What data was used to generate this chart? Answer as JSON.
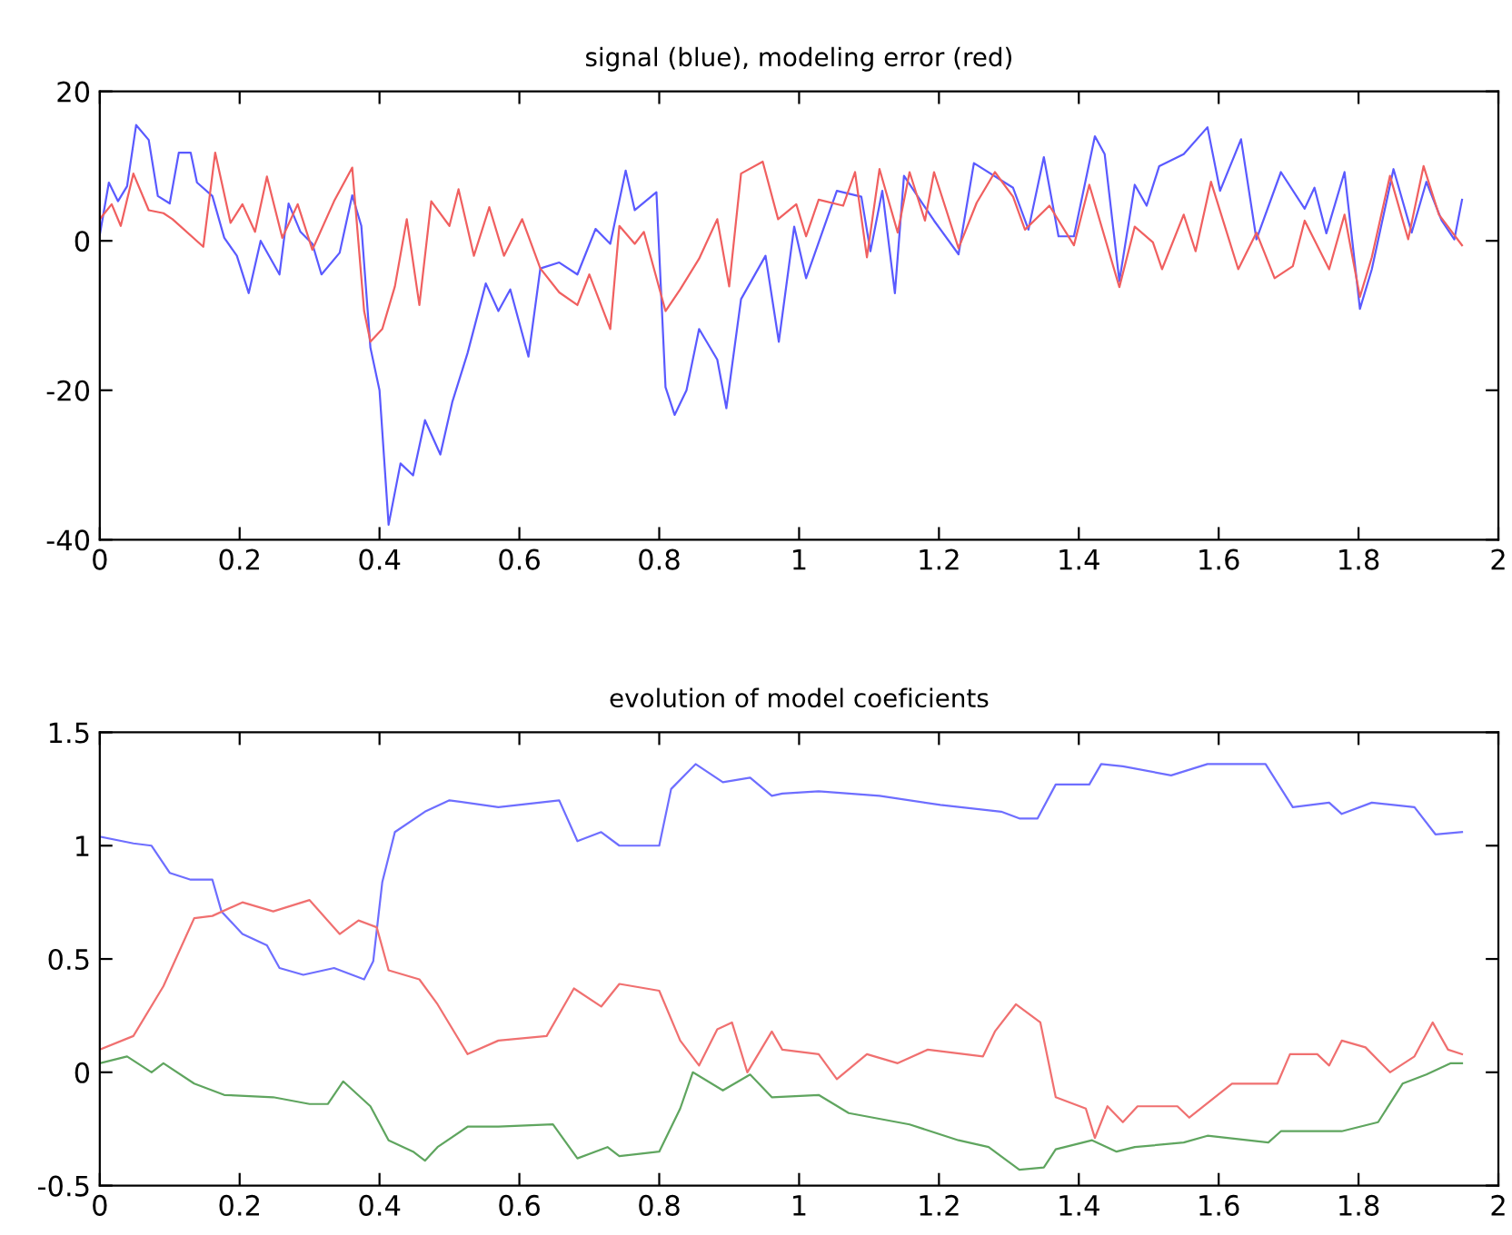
{
  "chart_data": [
    {
      "type": "line",
      "title": "signal (blue), modeling error (red)",
      "xlim": [
        0,
        2
      ],
      "ylim": [
        -40,
        20
      ],
      "xticks": [
        0,
        0.2,
        0.4,
        0.6,
        0.8,
        1,
        1.2,
        1.4,
        1.6,
        1.8,
        2
      ],
      "yticks": [
        -40,
        -20,
        0,
        20
      ],
      "series": [
        {
          "color": "#5a5aff",
          "x": [
            0,
            0.013,
            0.026,
            0.039,
            0.052,
            0.07,
            0.083,
            0.1,
            0.113,
            0.13,
            0.139,
            0.161,
            0.178,
            0.196,
            0.213,
            0.23,
            0.257,
            0.27,
            0.287,
            0.304,
            0.317,
            0.343,
            0.361,
            0.374,
            0.387,
            0.4,
            0.413,
            0.43,
            0.448,
            0.465,
            0.487,
            0.504,
            0.526,
            0.552,
            0.57,
            0.587,
            0.613,
            0.63,
            0.657,
            0.683,
            0.709,
            0.73,
            0.752,
            0.765,
            0.796,
            0.809,
            0.822,
            0.839,
            0.857,
            0.883,
            0.896,
            0.917,
            0.952,
            0.971,
            0.993,
            1.01,
            1.054,
            1.089,
            1.102,
            1.119,
            1.137,
            1.15,
            1.193,
            1.228,
            1.25,
            1.306,
            1.328,
            1.35,
            1.371,
            1.393,
            1.423,
            1.437,
            1.458,
            1.48,
            1.497,
            1.515,
            1.55,
            1.584,
            1.602,
            1.632,
            1.654,
            1.689,
            1.723,
            1.737,
            1.754,
            1.78,
            1.802,
            1.819,
            1.85,
            1.876,
            1.897,
            1.919,
            1.937,
            1.948
          ],
          "values": [
            0.8,
            7.8,
            5.3,
            7.3,
            15.5,
            13.5,
            6,
            5,
            11.8,
            11.8,
            7.8,
            6,
            0.4,
            -2,
            -7,
            0,
            -4.5,
            5,
            1.2,
            -0.4,
            -4.5,
            -1.6,
            6.1,
            2,
            -14.3,
            -20,
            -38,
            -29.8,
            -31.4,
            -24,
            -28.6,
            -21.6,
            -15,
            -5.7,
            -9.4,
            -6.5,
            -15.5,
            -3.7,
            -2.9,
            -4.5,
            1.6,
            -0.4,
            9.4,
            4.1,
            6.5,
            -19.6,
            -23.3,
            -20,
            -11.8,
            -15.9,
            -22.4,
            -7.8,
            -2,
            -13.5,
            1.9,
            -5,
            6.7,
            5.9,
            -1.4,
            6.7,
            -7,
            8.7,
            2.7,
            -1.8,
            10.4,
            7.1,
            1.5,
            11.2,
            0.6,
            0.6,
            14,
            11.6,
            -5.4,
            7.5,
            4.7,
            10,
            11.6,
            15.2,
            6.7,
            13.6,
            0.2,
            9.2,
            4.3,
            7.1,
            1,
            9.2,
            -9.1,
            -3.8,
            9.6,
            1.1,
            7.9,
            2.7,
            0.2,
            5.5
          ]
        },
        {
          "color": "#f06060",
          "x": [
            0,
            0.017,
            0.03,
            0.048,
            0.07,
            0.091,
            0.104,
            0.148,
            0.165,
            0.187,
            0.204,
            0.222,
            0.239,
            0.261,
            0.283,
            0.304,
            0.335,
            0.361,
            0.378,
            0.387,
            0.404,
            0.422,
            0.439,
            0.457,
            0.474,
            0.5,
            0.513,
            0.535,
            0.557,
            0.578,
            0.604,
            0.63,
            0.657,
            0.683,
            0.7,
            0.73,
            0.743,
            0.765,
            0.778,
            0.809,
            0.83,
            0.857,
            0.883,
            0.9,
            0.917,
            0.948,
            0.97,
            0.996,
            1.01,
            1.028,
            1.063,
            1.08,
            1.097,
            1.115,
            1.141,
            1.158,
            1.18,
            1.193,
            1.228,
            1.254,
            1.28,
            1.306,
            1.323,
            1.358,
            1.393,
            1.415,
            1.458,
            1.48,
            1.506,
            1.519,
            1.55,
            1.567,
            1.589,
            1.628,
            1.654,
            1.68,
            1.706,
            1.723,
            1.758,
            1.78,
            1.802,
            1.819,
            1.845,
            1.871,
            1.893,
            1.915,
            1.948
          ],
          "values": [
            2.9,
            4.9,
            2,
            9,
            4.1,
            3.7,
            2.9,
            -0.8,
            11.8,
            2.4,
            4.9,
            1.2,
            8.6,
            0.4,
            4.9,
            -1.2,
            5.3,
            9.8,
            -9.4,
            -13.5,
            -11.8,
            -6.1,
            2.9,
            -8.6,
            5.3,
            2,
            6.9,
            -2,
            4.5,
            -2,
            2.9,
            -3.7,
            -6.9,
            -8.6,
            -4.5,
            -11.8,
            2,
            -0.4,
            1.2,
            -9.4,
            -6.5,
            -2.4,
            2.9,
            -6.1,
            9,
            10.6,
            2.9,
            4.9,
            0.6,
            5.5,
            4.7,
            9.2,
            -2.2,
            9.6,
            1.1,
            9.2,
            2.7,
            9.2,
            -1,
            5.1,
            9.2,
            5.9,
            1.5,
            4.7,
            -0.6,
            7.5,
            -6.2,
            1.9,
            -0.2,
            -3.8,
            3.5,
            -1.4,
            7.9,
            -3.8,
            1.1,
            -5,
            -3.4,
            2.7,
            -3.8,
            3.5,
            -7.5,
            -2.2,
            8.7,
            0.2,
            10,
            3.5,
            -0.6
          ]
        }
      ]
    },
    {
      "type": "line",
      "title": "evolution of model coeficients",
      "xlim": [
        0,
        2
      ],
      "ylim": [
        -0.5,
        1.5
      ],
      "xticks": [
        0,
        0.2,
        0.4,
        0.6,
        0.8,
        1,
        1.2,
        1.4,
        1.6,
        1.8,
        2
      ],
      "yticks": [
        -0.5,
        0,
        0.5,
        1,
        1.5
      ],
      "series": [
        {
          "color": "#6e6eff",
          "x": [
            0,
            0.048,
            0.074,
            0.1,
            0.13,
            0.161,
            0.174,
            0.204,
            0.239,
            0.257,
            0.291,
            0.335,
            0.378,
            0.391,
            0.404,
            0.422,
            0.465,
            0.5,
            0.57,
            0.657,
            0.683,
            0.717,
            0.743,
            0.8,
            0.817,
            0.852,
            0.891,
            0.93,
            0.961,
            0.976,
            1.028,
            1.115,
            1.202,
            1.289,
            1.315,
            1.341,
            1.367,
            1.415,
            1.432,
            1.463,
            1.532,
            1.584,
            1.667,
            1.706,
            1.758,
            1.776,
            1.819,
            1.88,
            1.91,
            1.948
          ],
          "values": [
            1.04,
            1.01,
            1.0,
            0.88,
            0.85,
            0.85,
            0.71,
            0.61,
            0.56,
            0.46,
            0.43,
            0.46,
            0.41,
            0.49,
            0.84,
            1.06,
            1.15,
            1.2,
            1.17,
            1.2,
            1.02,
            1.06,
            1.0,
            1.0,
            1.25,
            1.36,
            1.28,
            1.3,
            1.22,
            1.23,
            1.24,
            1.22,
            1.18,
            1.15,
            1.12,
            1.12,
            1.27,
            1.27,
            1.36,
            1.35,
            1.31,
            1.36,
            1.36,
            1.17,
            1.19,
            1.14,
            1.19,
            1.17,
            1.05,
            1.06
          ]
        },
        {
          "color": "#f07070",
          "x": [
            0,
            0.048,
            0.091,
            0.135,
            0.161,
            0.204,
            0.248,
            0.3,
            0.343,
            0.37,
            0.396,
            0.413,
            0.457,
            0.483,
            0.526,
            0.57,
            0.639,
            0.678,
            0.717,
            0.743,
            0.8,
            0.83,
            0.857,
            0.883,
            0.904,
            0.926,
            0.961,
            0.976,
            1.028,
            1.054,
            1.097,
            1.141,
            1.184,
            1.263,
            1.28,
            1.31,
            1.345,
            1.367,
            1.41,
            1.423,
            1.441,
            1.463,
            1.484,
            1.541,
            1.558,
            1.619,
            1.684,
            1.702,
            1.741,
            1.758,
            1.776,
            1.81,
            1.845,
            1.88,
            1.906,
            1.928,
            1.948
          ],
          "values": [
            0.1,
            0.16,
            0.38,
            0.68,
            0.69,
            0.75,
            0.71,
            0.76,
            0.61,
            0.67,
            0.64,
            0.45,
            0.41,
            0.3,
            0.08,
            0.14,
            0.16,
            0.37,
            0.29,
            0.39,
            0.36,
            0.14,
            0.03,
            0.19,
            0.22,
            0.0,
            0.18,
            0.1,
            0.08,
            -0.03,
            0.08,
            0.04,
            0.1,
            0.07,
            0.18,
            0.3,
            0.22,
            -0.11,
            -0.16,
            -0.29,
            -0.15,
            -0.22,
            -0.15,
            -0.15,
            -0.2,
            -0.05,
            -0.05,
            0.08,
            0.08,
            0.03,
            0.14,
            0.11,
            0.0,
            0.07,
            0.22,
            0.1,
            0.08
          ]
        },
        {
          "color": "#5fa55f",
          "x": [
            0,
            0.039,
            0.074,
            0.091,
            0.135,
            0.178,
            0.248,
            0.3,
            0.326,
            0.348,
            0.387,
            0.413,
            0.448,
            0.465,
            0.483,
            0.526,
            0.57,
            0.648,
            0.683,
            0.726,
            0.743,
            0.8,
            0.83,
            0.848,
            0.891,
            0.93,
            0.961,
            1.028,
            1.071,
            1.158,
            1.228,
            1.271,
            1.315,
            1.35,
            1.367,
            1.419,
            1.454,
            1.48,
            1.55,
            1.584,
            1.671,
            1.689,
            1.776,
            1.828,
            1.863,
            1.897,
            1.932,
            1.948
          ],
          "values": [
            0.04,
            0.07,
            0.0,
            0.04,
            -0.05,
            -0.1,
            -0.11,
            -0.14,
            -0.14,
            -0.04,
            -0.15,
            -0.3,
            -0.35,
            -0.39,
            -0.33,
            -0.24,
            -0.24,
            -0.23,
            -0.38,
            -0.33,
            -0.37,
            -0.35,
            -0.16,
            0.0,
            -0.08,
            -0.01,
            -0.11,
            -0.1,
            -0.18,
            -0.23,
            -0.3,
            -0.33,
            -0.43,
            -0.42,
            -0.34,
            -0.3,
            -0.35,
            -0.33,
            -0.31,
            -0.28,
            -0.31,
            -0.26,
            -0.26,
            -0.22,
            -0.05,
            -0.01,
            0.04,
            0.04
          ]
        }
      ]
    }
  ]
}
